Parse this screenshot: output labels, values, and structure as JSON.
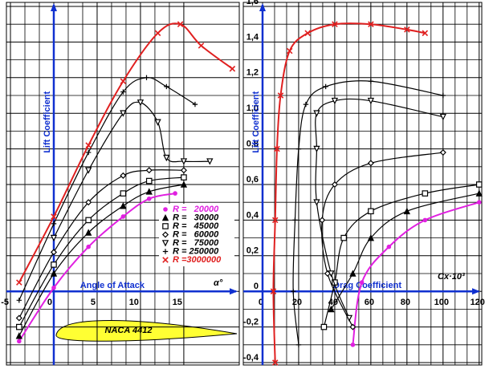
{
  "chart_data": [
    {
      "type": "line",
      "x_label": "Angle of Attack",
      "x_unit": "α°",
      "y_label": "Lift Coefficient",
      "annotation": "NACA 4412",
      "xlim": [
        -5.4,
        21.4
      ],
      "ylim": [
        -0.4,
        1.6
      ],
      "xticks": [
        -5,
        0,
        5,
        10,
        15
      ],
      "grid": true,
      "series": [
        {
          "name": "R =   20000",
          "color": "#e020e0",
          "marker": "dot",
          "x": [
            -4,
            0,
            4,
            8,
            11,
            14
          ],
          "values": [
            -0.28,
            0.02,
            0.25,
            0.42,
            0.52,
            0.55
          ]
        },
        {
          "name": "R =   30000",
          "color": "#000000",
          "marker": "triangle",
          "x": [
            -4,
            0,
            4,
            8,
            11,
            15
          ],
          "values": [
            -0.25,
            0.1,
            0.33,
            0.48,
            0.56,
            0.6
          ]
        },
        {
          "name": "R =   45000",
          "color": "#000000",
          "marker": "square",
          "x": [
            -4,
            0,
            4,
            8,
            11,
            15
          ],
          "values": [
            -0.2,
            0.15,
            0.4,
            0.55,
            0.62,
            0.64
          ]
        },
        {
          "name": "R =   60000",
          "color": "#000000",
          "marker": "diamond",
          "x": [
            -4,
            0,
            4,
            8,
            11,
            15
          ],
          "values": [
            -0.15,
            0.22,
            0.5,
            0.65,
            0.68,
            0.68
          ]
        },
        {
          "name": "R =   75000",
          "color": "#000000",
          "marker": "tri-down",
          "x": [
            0,
            4,
            8,
            10,
            12,
            13,
            15,
            18
          ],
          "values": [
            0.3,
            0.68,
            1.0,
            1.06,
            0.95,
            0.75,
            0.73,
            0.73
          ]
        },
        {
          "name": "R = 250000",
          "color": "#000000",
          "marker": "plus",
          "x": [
            -4,
            0,
            4,
            8,
            10.7,
            13,
            16.3
          ],
          "values": [
            -0.05,
            0.38,
            0.78,
            1.12,
            1.2,
            1.15,
            1.05
          ]
        },
        {
          "name": "R =3000000",
          "color": "#e02020",
          "marker": "cross",
          "x": [
            -4,
            0,
            4,
            8,
            12,
            14.6,
            17,
            20.6
          ],
          "values": [
            0.05,
            0.42,
            0.82,
            1.18,
            1.45,
            1.5,
            1.38,
            1.25
          ]
        }
      ]
    },
    {
      "type": "line",
      "x_label": "Drag Coefficient",
      "x_unit": "Cx·10³",
      "y_label": "Lift Coefficient",
      "xlim": [
        -10,
        121
      ],
      "ylim": [
        -0.4,
        1.6
      ],
      "xticks": [
        0,
        20,
        40,
        60,
        80,
        100,
        120
      ],
      "yticks": [
        {
          "value": -0.4,
          "label": "-0,4"
        },
        {
          "value": -0.2,
          "label": "-0,2"
        },
        0,
        {
          "value": 0.2,
          "label": "0,2"
        },
        {
          "value": 0.4,
          "label": "0,4"
        },
        {
          "value": 0.6,
          "label": "0,6"
        },
        {
          "value": 0.8,
          "label": "0,8"
        },
        {
          "value": 1.0,
          "label": "1,0"
        },
        {
          "value": 1.2,
          "label": "1,2"
        },
        {
          "value": 1.4,
          "label": "1,4"
        },
        {
          "value": 1.6,
          "label": "1,6"
        }
      ],
      "grid": true,
      "series": [
        {
          "color": "#e020e0",
          "marker": "dot",
          "x": [
            50,
            55,
            70,
            90,
            120
          ],
          "values": [
            -0.3,
            0.05,
            0.25,
            0.4,
            0.5
          ]
        },
        {
          "color": "#000000",
          "marker": "triangle",
          "x": [
            38,
            50,
            60,
            80,
            120
          ],
          "values": [
            -0.1,
            0.1,
            0.3,
            0.45,
            0.55
          ]
        },
        {
          "color": "#000000",
          "marker": "square",
          "x": [
            34,
            40,
            45,
            60,
            90,
            120
          ],
          "values": [
            -0.2,
            0.05,
            0.3,
            0.45,
            0.55,
            0.6
          ]
        },
        {
          "color": "#000000",
          "marker": "diamond",
          "x": [
            50,
            36,
            33,
            40,
            60,
            100
          ],
          "values": [
            -0.2,
            0.1,
            0.4,
            0.6,
            0.72,
            0.78
          ]
        },
        {
          "color": "#000000",
          "marker": "tri-down",
          "x": [
            48,
            38,
            30,
            30,
            30,
            40,
            60,
            100
          ],
          "values": [
            -0.15,
            0.1,
            0.5,
            0.8,
            1.0,
            1.07,
            1.07,
            0.98
          ]
        },
        {
          "color": "#000000",
          "marker": "plus",
          "x": [
            20,
            17,
            18,
            20,
            24,
            35,
            60,
            100
          ],
          "values": [
            -0.3,
            0,
            0.4,
            0.8,
            1.05,
            1.15,
            1.18,
            1.1
          ]
        },
        {
          "color": "#e02020",
          "marker": "cross",
          "x": [
            7,
            6,
            7,
            8,
            10,
            15,
            25,
            40,
            60,
            80,
            90
          ],
          "values": [
            -0.4,
            0,
            0.4,
            0.8,
            1.1,
            1.35,
            1.45,
            1.5,
            1.5,
            1.47,
            1.45
          ]
        }
      ]
    }
  ]
}
